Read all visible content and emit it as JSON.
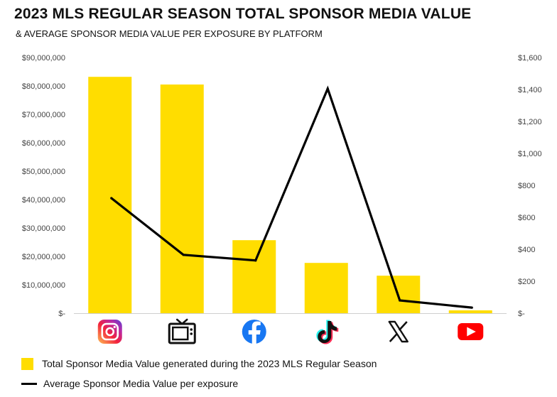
{
  "title": "2023 MLS REGULAR SEASON TOTAL SPONSOR MEDIA VALUE",
  "subtitle": "& AVERAGE SPONSOR MEDIA VALUE PER EXPOSURE BY PLATFORM",
  "colors": {
    "bar": "#FFDD00",
    "line": "#000000"
  },
  "chart_data": {
    "type": "bar",
    "categories": [
      "instagram-icon",
      "tv-icon",
      "facebook-icon",
      "tiktok-icon",
      "x-icon",
      "youtube-icon"
    ],
    "series": [
      {
        "name": "Total Sponsor Media Value generated during the 2023 MLS Regular Season",
        "type": "bar",
        "axis": "left",
        "values": [
          83200000,
          80500000,
          25700000,
          17700000,
          13200000,
          1000000
        ]
      },
      {
        "name": "Average Sponsor Media Value per exposure",
        "type": "line",
        "axis": "right",
        "values": [
          720,
          365,
          330,
          1405,
          80,
          35
        ]
      }
    ],
    "y_left": {
      "min": 0,
      "max": 90000000,
      "ticks": [
        "$-",
        "$10,000,000",
        "$20,000,000",
        "$30,000,000",
        "$40,000,000",
        "$50,000,000",
        "$60,000,000",
        "$70,000,000",
        "$80,000,000",
        "$90,000,000"
      ]
    },
    "y_right": {
      "min": 0,
      "max": 1600,
      "ticks": [
        "$-",
        "$200",
        "$400",
        "$600",
        "$800",
        "$1,000",
        "$1,200",
        "$1,400",
        "$1,600"
      ]
    },
    "grid": false,
    "legend": "bottom-left"
  }
}
